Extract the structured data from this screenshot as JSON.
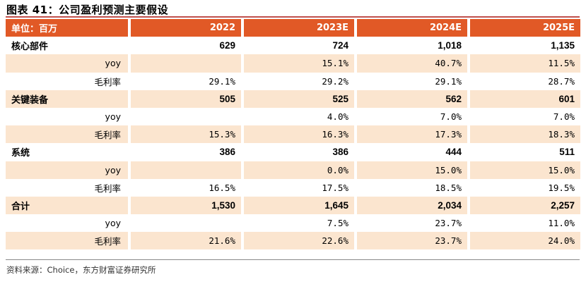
{
  "title": "图表 41：公司盈利预测主要假设",
  "header": {
    "unit": "单位：百万",
    "years": [
      "2022",
      "2023E",
      "2024E",
      "2025E"
    ]
  },
  "rows": [
    {
      "type": "seg",
      "shaded": false,
      "label": "核心部件",
      "values": [
        "629",
        "724",
        "1,018",
        "1,135"
      ]
    },
    {
      "type": "sub",
      "shaded": true,
      "label": "yoy",
      "values": [
        "",
        "15.1%",
        "40.7%",
        "11.5%"
      ]
    },
    {
      "type": "sub",
      "shaded": false,
      "label": "毛利率",
      "values": [
        "29.1%",
        "29.2%",
        "29.1%",
        "28.7%"
      ]
    },
    {
      "type": "seg",
      "shaded": true,
      "label": "关键装备",
      "values": [
        "505",
        "525",
        "562",
        "601"
      ]
    },
    {
      "type": "sub",
      "shaded": false,
      "label": "yoy",
      "values": [
        "",
        "4.0%",
        "7.0%",
        "7.0%"
      ]
    },
    {
      "type": "sub",
      "shaded": true,
      "label": "毛利率",
      "values": [
        "15.3%",
        "16.3%",
        "17.3%",
        "18.3%"
      ]
    },
    {
      "type": "seg",
      "shaded": false,
      "label": "系统",
      "values": [
        "386",
        "386",
        "444",
        "511"
      ]
    },
    {
      "type": "sub",
      "shaded": true,
      "label": "yoy",
      "values": [
        "",
        "0.0%",
        "15.0%",
        "15.0%"
      ]
    },
    {
      "type": "sub",
      "shaded": false,
      "label": "毛利率",
      "values": [
        "16.5%",
        "17.5%",
        "18.5%",
        "19.5%"
      ]
    },
    {
      "type": "seg",
      "shaded": true,
      "label": "合计",
      "values": [
        "1,530",
        "1,645",
        "2,034",
        "2,257"
      ]
    },
    {
      "type": "sub",
      "shaded": false,
      "label": "yoy",
      "values": [
        "",
        "7.5%",
        "23.7%",
        "11.0%"
      ]
    },
    {
      "type": "sub",
      "shaded": true,
      "label": "毛利率",
      "values": [
        "21.6%",
        "22.6%",
        "23.7%",
        "24.0%"
      ]
    }
  ],
  "source": "资料来源：Choice，东方财富证券研究所"
}
